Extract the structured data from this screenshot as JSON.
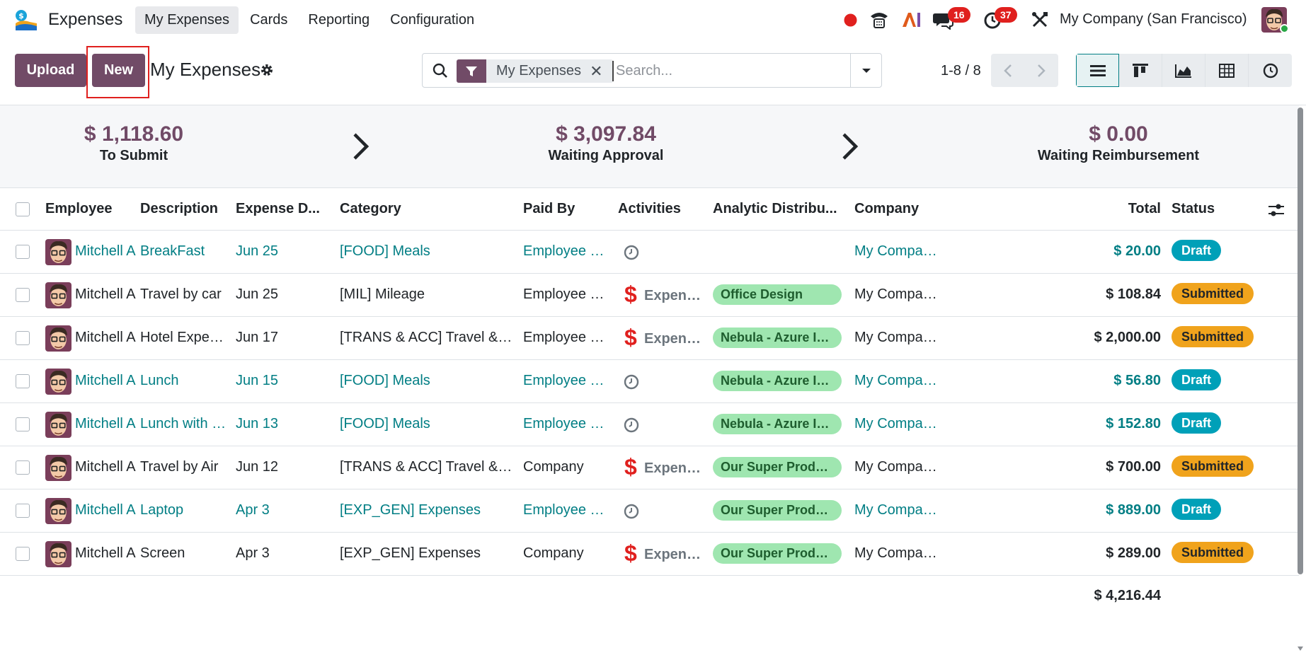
{
  "app": {
    "name": "Expenses"
  },
  "menu": [
    {
      "label": "My Expenses",
      "active": true
    },
    {
      "label": "Cards",
      "active": false
    },
    {
      "label": "Reporting",
      "active": false
    },
    {
      "label": "Configuration",
      "active": false
    }
  ],
  "systray": {
    "messages_count": "16",
    "activities_count": "37",
    "company": "My Company (San Francisco)"
  },
  "control": {
    "upload_label": "Upload",
    "new_label": "New",
    "title": "My Expenses",
    "facet_label": "My Expenses",
    "search_placeholder": "Search...",
    "pager": "1-8 / 8"
  },
  "summary": [
    {
      "amount": "$ 1,118.60",
      "label": "To Submit"
    },
    {
      "amount": "$ 3,097.84",
      "label": "Waiting Approval"
    },
    {
      "amount": "$ 0.00",
      "label": "Waiting Reimbursement"
    }
  ],
  "columns": {
    "employee": "Employee",
    "description": "Description",
    "date": "Expense D...",
    "category": "Category",
    "paid_by": "Paid By",
    "activities": "Activities",
    "analytic": "Analytic Distribu...",
    "company": "Company",
    "total": "Total",
    "status": "Status"
  },
  "rows": [
    {
      "employee": "Mitchell Admin",
      "description": "BreakFast",
      "date": "Jun 25",
      "category": "[FOOD] Meals",
      "paid_by": "Employee (to reimburse)",
      "activity": "clock",
      "activity_text": "",
      "analytic": "",
      "company": "My Company (San Francisco)",
      "total": "$ 20.00",
      "status": "Draft"
    },
    {
      "employee": "Mitchell Admin",
      "description": "Travel by car",
      "date": "Jun 25",
      "category": "[MIL] Mileage",
      "paid_by": "Employee (to reimburse)",
      "activity": "dollar",
      "activity_text": "Expense Approval",
      "analytic": "Office Design",
      "company": "My Company (San Francisco)",
      "total": "$ 108.84",
      "status": "Submitted"
    },
    {
      "employee": "Mitchell Admin",
      "description": "Hotel Expenses",
      "date": "Jun 17",
      "category": "[TRANS & ACC] Travel & Accommodation",
      "paid_by": "Employee (to reimburse)",
      "activity": "dollar",
      "activity_text": "Expense Approval",
      "analytic": "Nebula - Azure Interior",
      "company": "My Company (San Francisco)",
      "total": "$ 2,000.00",
      "status": "Submitted"
    },
    {
      "employee": "Mitchell Admin",
      "description": "Lunch",
      "date": "Jun 15",
      "category": "[FOOD] Meals",
      "paid_by": "Employee (to reimburse)",
      "activity": "clock",
      "activity_text": "",
      "analytic": "Nebula - Azure Interior",
      "company": "My Company (San Francisco)",
      "total": "$ 56.80",
      "status": "Draft"
    },
    {
      "employee": "Mitchell Admin",
      "description": "Lunch with customer",
      "date": "Jun 13",
      "category": "[FOOD] Meals",
      "paid_by": "Employee (to reimburse)",
      "activity": "clock",
      "activity_text": "",
      "analytic": "Nebula - Azure Interior",
      "company": "My Company (San Francisco)",
      "total": "$ 152.80",
      "status": "Draft"
    },
    {
      "employee": "Mitchell Admin",
      "description": "Travel by Air",
      "date": "Jun 12",
      "category": "[TRANS & ACC] Travel & Accommodation",
      "paid_by": "Company",
      "activity": "dollar",
      "activity_text": "Expense Approval",
      "analytic": "Our Super Product",
      "company": "My Company (San Francisco)",
      "total": "$ 700.00",
      "status": "Submitted"
    },
    {
      "employee": "Mitchell Admin",
      "description": "Laptop",
      "date": "Apr 3",
      "category": "[EXP_GEN] Expenses",
      "paid_by": "Employee (to reimburse)",
      "activity": "clock",
      "activity_text": "",
      "analytic": "Our Super Product",
      "company": "My Company (San Francisco)",
      "total": "$ 889.00",
      "status": "Draft"
    },
    {
      "employee": "Mitchell Admin",
      "description": "Screen",
      "date": "Apr 3",
      "category": "[EXP_GEN] Expenses",
      "paid_by": "Company",
      "activity": "dollar",
      "activity_text": "Expense Approval",
      "analytic": "Our Super Product",
      "company": "My Company (San Francisco)",
      "total": "$ 289.00",
      "status": "Submitted"
    }
  ],
  "grand_total": "$ 4,216.44",
  "colors": {
    "brand": "#714b67",
    "link": "#017e84",
    "draft": "#00a0b8",
    "submitted": "#f0a31c",
    "tag": "#9fe6b0"
  }
}
